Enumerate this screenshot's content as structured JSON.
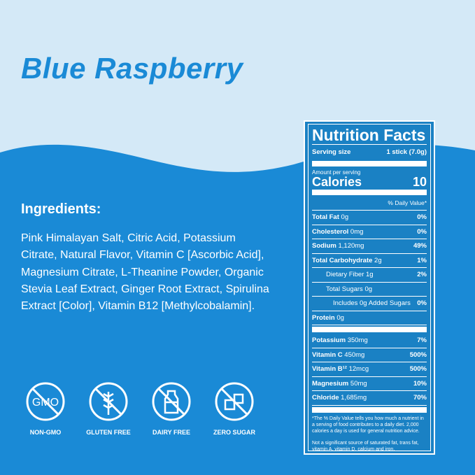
{
  "title": "Blue Raspberry",
  "colors": {
    "background_top": "#d4e9f7",
    "background_main": "#1a8ad6",
    "panel": "#1a81c4"
  },
  "ingredients": {
    "heading": "Ingredients:",
    "text": "Pink Himalayan Salt, Citric Acid, Potassium Citrate, Natural Flavor, Vitamin C [Ascorbic Acid], Magnesium Citrate, L-Theanine Powder, Organic Stevia Leaf Extract, Ginger Root Extract, Spirulina Extract [Color], Vitamin B12 [Methylcobalamin]."
  },
  "badges": [
    {
      "icon": "no-gmo-icon",
      "label": "NON-GMO"
    },
    {
      "icon": "no-gluten-icon",
      "label": "GLUTEN FREE"
    },
    {
      "icon": "no-dairy-icon",
      "label": "DAIRY FREE"
    },
    {
      "icon": "no-sugar-icon",
      "label": "ZERO SUGAR"
    }
  ],
  "nutrition": {
    "title": "Nutrition Facts",
    "serving_label": "Serving size",
    "serving_value": "1 stick (7.0g)",
    "amount_label": "Amount per serving",
    "calories_label": "Calories",
    "calories_value": "10",
    "dv_label": "% Daily Value*",
    "rows": [
      {
        "name": "Total Fat",
        "amount": "0g",
        "dv": "0%"
      },
      {
        "name": "Cholesterol",
        "amount": "0mg",
        "dv": "0%"
      },
      {
        "name": "Sodium",
        "amount": "1,120mg",
        "dv": "49%"
      },
      {
        "name": "Total Carbohydrate",
        "amount": "2g",
        "dv": "1%"
      },
      {
        "name": "",
        "amount": "Dietary Fiber 1g",
        "dv": "2%"
      },
      {
        "name": "",
        "amount": "Total Sugars 0g",
        "dv": ""
      },
      {
        "name": "",
        "amount": "Includes 0g Added Sugars",
        "dv": "0%"
      },
      {
        "name": "Protein",
        "amount": "0g",
        "dv": ""
      },
      {
        "name": "Potassium",
        "amount": "350mg",
        "dv": "7%"
      },
      {
        "name": "Vitamin C",
        "amount": "450mg",
        "dv": "500%"
      },
      {
        "name": "Vitamin B¹²",
        "amount": "12mcg",
        "dv": "500%"
      },
      {
        "name": "Magnesium",
        "amount": "50mg",
        "dv": "10%"
      },
      {
        "name": "Chloride",
        "amount": "1,685mg",
        "dv": "70%"
      }
    ],
    "footnote1": "*The % Daily Value tells you how much a nutrient in a serving of food contributes to a daily diet. 2,000 calories a day is used for general nutrition advice.",
    "footnote2": "Not a significant source of saturated fat, trans fat, vitamin A, vitamin D, calcium and iron."
  }
}
